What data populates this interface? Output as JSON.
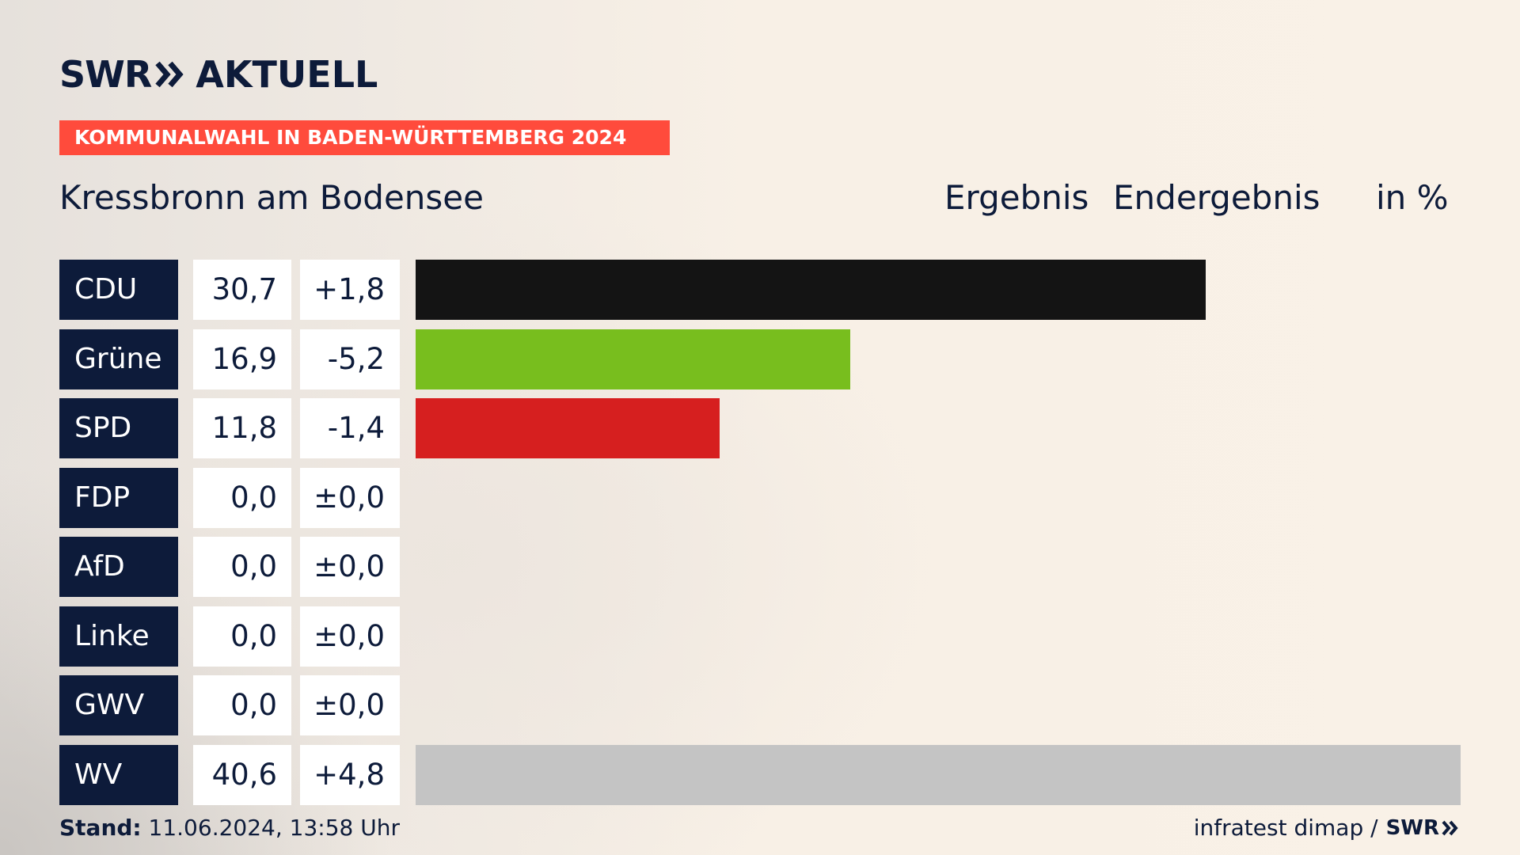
{
  "brand": {
    "swr": "SWR",
    "aktuell": "AKTUELL",
    "footer_swr": "SWR"
  },
  "banner": "KOMMUNALWAHL IN BADEN-WÜRTTEMBERG 2024",
  "header": {
    "place": "Kressbronn am Bodensee",
    "result_label": "Ergebnis",
    "result_status": "Endergebnis",
    "unit": "in %"
  },
  "chart_data": {
    "type": "bar",
    "orientation": "horizontal",
    "categories": [
      "CDU",
      "Grüne",
      "SPD",
      "FDP",
      "AfD",
      "Linke",
      "GWV",
      "WV"
    ],
    "values": [
      30.7,
      16.9,
      11.8,
      0.0,
      0.0,
      0.0,
      0.0,
      40.6
    ],
    "values_label": [
      "30,7",
      "16,9",
      "11,8",
      "0,0",
      "0,0",
      "0,0",
      "0,0",
      "40,6"
    ],
    "changes_label": [
      "+1,8",
      "-5,2",
      "-1,4",
      "±0,0",
      "±0,0",
      "±0,0",
      "±0,0",
      "+4,8"
    ],
    "colors": [
      "#141414",
      "#78be1e",
      "#d61f1f",
      "#ffed00",
      "#009ee0",
      "#be3075",
      "#888888",
      "#c4c4c4"
    ],
    "xlim": [
      0,
      40.6
    ]
  },
  "footer": {
    "stand_label": "Stand:",
    "stand_value": "11.06.2024, 13:58 Uhr",
    "source": "infratest dimap /"
  }
}
